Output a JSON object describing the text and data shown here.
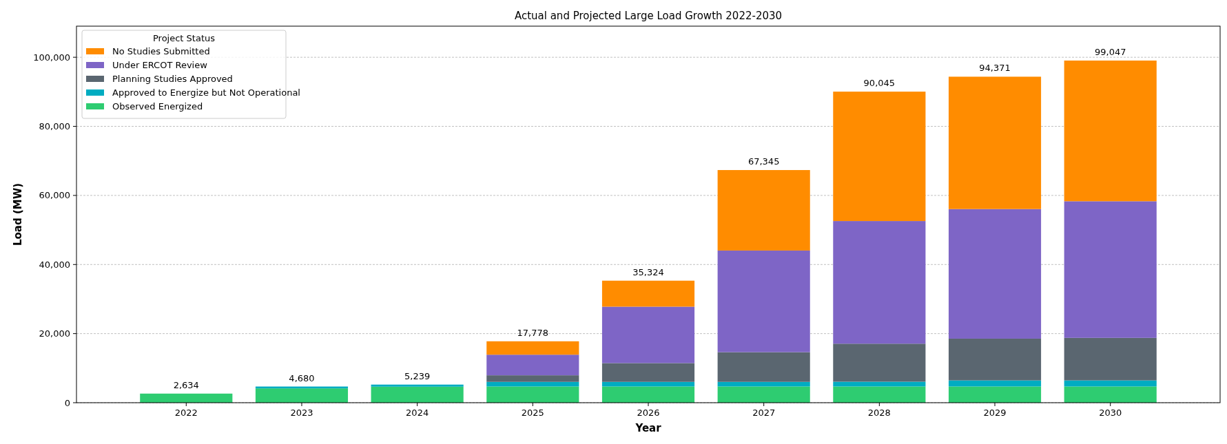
{
  "chart_data": {
    "type": "bar",
    "title": "Actual and Projected Large Load Growth 2022-2030",
    "xlabel": "Year",
    "ylabel": "Load (MW)",
    "legend_title": "Project Status",
    "categories": [
      "2022",
      "2023",
      "2024",
      "2025",
      "2026",
      "2027",
      "2028",
      "2029",
      "2030"
    ],
    "stacked": true,
    "series": [
      {
        "name": "Observed Energized",
        "color": "#2ecc71",
        "values": [
          2634,
          4140,
          4639,
          4700,
          4700,
          4700,
          4700,
          4700,
          4700
        ]
      },
      {
        "name": "Approved to Energize but Not Operational",
        "color": "#00acc1",
        "values": [
          0,
          540,
          600,
          1330,
          1330,
          1330,
          1380,
          1760,
          1760
        ]
      },
      {
        "name": "Planning Studies Approved",
        "color": "#5a6670",
        "values": [
          0,
          0,
          0,
          1910,
          5440,
          8600,
          11000,
          12080,
          12310
        ]
      },
      {
        "name": "Under ERCOT Review",
        "color": "#7e65c6",
        "values": [
          0,
          0,
          0,
          5960,
          16330,
          29420,
          35510,
          37520,
          39550
        ]
      },
      {
        "name": "No Studies Submitted",
        "color": "#ff8c00",
        "values": [
          0,
          0,
          0,
          3878,
          7524,
          23295,
          37455,
          38311,
          40726
        ]
      }
    ],
    "totals": [
      "2,634",
      "4,680",
      "5,239",
      "17,778",
      "35,324",
      "67,345",
      "90,045",
      "94,371",
      "99,047"
    ],
    "ylim": [
      0,
      109000
    ],
    "yticks": [
      0,
      {
        "value": 20000,
        "label": "20,000"
      },
      {
        "value": 40000,
        "label": "40,000"
      },
      {
        "value": 60000,
        "label": "60,000"
      },
      {
        "value": 80000,
        "label": "80,000"
      },
      {
        "value": 100000,
        "label": "100,000"
      }
    ],
    "grid": "y",
    "legend": "top left"
  }
}
